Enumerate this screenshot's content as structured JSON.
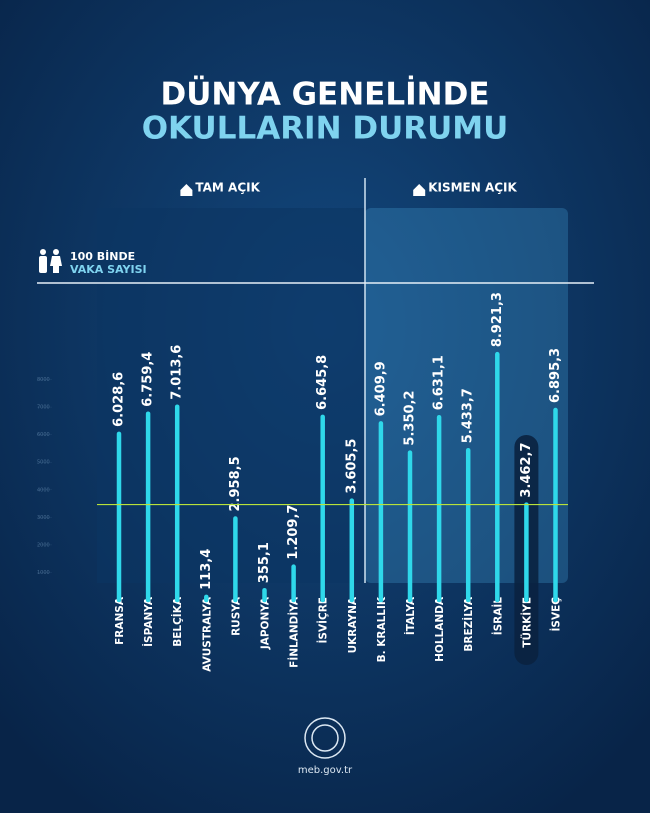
{
  "chart_data": {
    "type": "bar",
    "title": "DÜNYA GENELİNDE",
    "subtitle": "OKULLARIN DURUMU",
    "y_label": "100 BİNDE",
    "y_label_2": "VAKA SAYISI",
    "categories": [
      "FRANSA",
      "İSPANYA",
      "BELÇİKA",
      "AVUSTRALYA",
      "RUSYA",
      "JAPONYA",
      "FİNLANDİYA",
      "İSVİÇRE",
      "UKRAYNA",
      "B. KRALLIK",
      "İTALYA",
      "HOLLANDA",
      "BREZİLYA",
      "İSRAİL",
      "TÜRKİYE",
      "İSVEÇ"
    ],
    "series": [
      {
        "name": "TAM AÇIK",
        "color": "#2fd8ea",
        "values": [
          6028.6,
          6759.4,
          7013.6,
          113.4,
          2958.5,
          355.1,
          1209.7,
          6645.8,
          3605.5,
          null,
          null,
          null,
          null,
          null,
          null,
          null
        ],
        "value_labels": [
          "6.028,6",
          "6.759,4",
          "7.013,6",
          "113,4",
          "2.958,5",
          "355,1",
          "1.209,7",
          "6.645,8",
          "3.605,5",
          null,
          null,
          null,
          null,
          null,
          null,
          null
        ]
      },
      {
        "name": "KISMEN AÇIK",
        "color": "#2fd8ea",
        "values": [
          null,
          null,
          null,
          null,
          null,
          null,
          null,
          null,
          null,
          6409.9,
          5350.2,
          6631.1,
          5433.7,
          8921.3,
          3462.7,
          6895.3
        ],
        "value_labels": [
          null,
          null,
          null,
          null,
          null,
          null,
          null,
          null,
          null,
          "6.409,9",
          "5.350,2",
          "6.631,1",
          "5.433,7",
          "8.921,3",
          "3.462,7",
          "6.895,3"
        ]
      }
    ],
    "highlight": "TÜRKİYE",
    "reference_color": "#b9e23a",
    "ylim": [
      0,
      9000
    ],
    "yticks": [
      1000,
      2000,
      3000,
      4000,
      5000,
      6000,
      7000,
      8000
    ],
    "source": "meb.gov.tr"
  }
}
